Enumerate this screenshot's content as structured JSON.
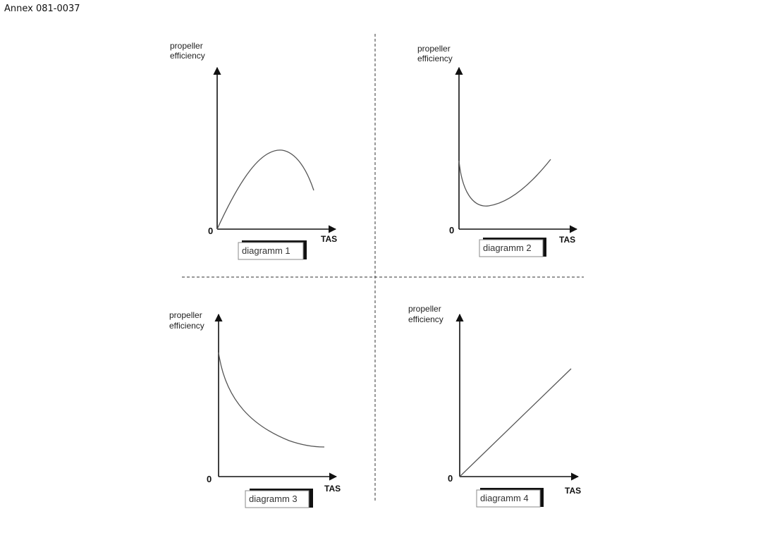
{
  "annex": "Annex 081-0037",
  "panels": [
    {
      "ylabel_line1": "propeller",
      "ylabel_line2": "efficiency",
      "xlabel": "TAS",
      "zero": "0",
      "caption": "diagramm 1",
      "curve": "peak"
    },
    {
      "ylabel_line1": "propeller",
      "ylabel_line2": "efficiency",
      "xlabel": "TAS",
      "zero": "0",
      "caption": "diagramm 2",
      "curve": "u-shape"
    },
    {
      "ylabel_line1": "propeller",
      "ylabel_line2": "efficiency",
      "xlabel": "TAS",
      "zero": "0",
      "caption": "diagramm 3",
      "curve": "decreasing"
    },
    {
      "ylabel_line1": "propeller",
      "ylabel_line2": "efficiency",
      "xlabel": "TAS",
      "zero": "0",
      "caption": "diagramm 4",
      "curve": "linear"
    }
  ]
}
